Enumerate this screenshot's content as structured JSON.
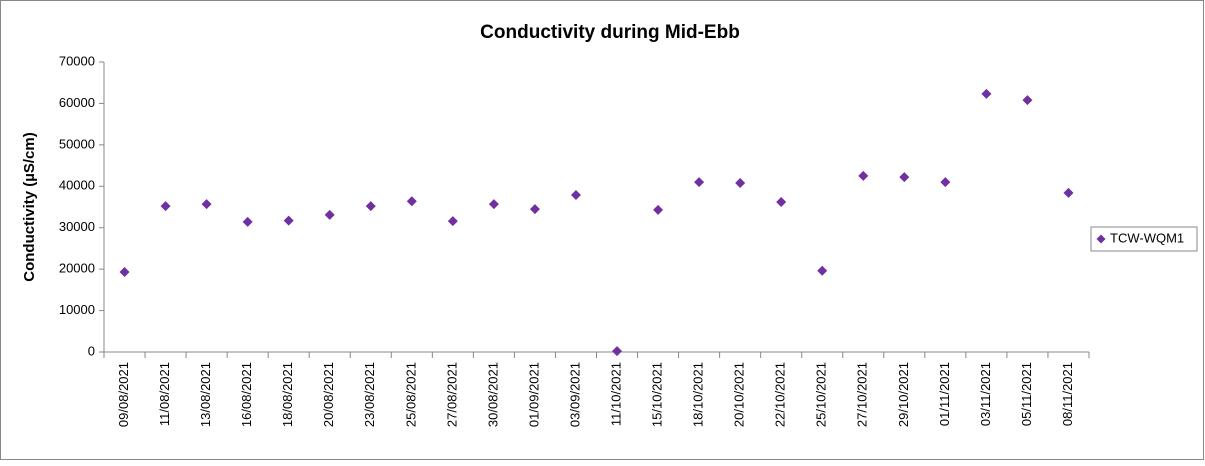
{
  "chart_data": {
    "type": "scatter",
    "title": "Conductivity during Mid-Ebb",
    "y_label": "Conductivity (µS/cm)",
    "categories": [
      "09/08/2021",
      "11/08/2021",
      "13/08/2021",
      "16/08/2021",
      "18/08/2021",
      "20/08/2021",
      "23/08/2021",
      "25/08/2021",
      "27/08/2021",
      "30/08/2021",
      "01/09/2021",
      "03/09/2021",
      "11/10/2021",
      "15/10/2021",
      "18/10/2021",
      "20/10/2021",
      "22/10/2021",
      "25/10/2021",
      "27/10/2021",
      "29/10/2021",
      "01/11/2021",
      "03/11/2021",
      "05/11/2021",
      "08/11/2021"
    ],
    "series": [
      {
        "name": "TCW-WQM1",
        "color": "#7030a0",
        "values": [
          19300,
          35200,
          35700,
          31400,
          31700,
          33100,
          35200,
          36400,
          31600,
          35700,
          34500,
          37900,
          200,
          34300,
          41000,
          40800,
          36200,
          19600,
          42500,
          42200,
          41000,
          62300,
          60800,
          38400
        ]
      }
    ],
    "ylim": [
      0,
      70000
    ],
    "yticks": [
      0,
      10000,
      20000,
      30000,
      40000,
      50000,
      60000,
      70000
    ],
    "legend": "right"
  }
}
